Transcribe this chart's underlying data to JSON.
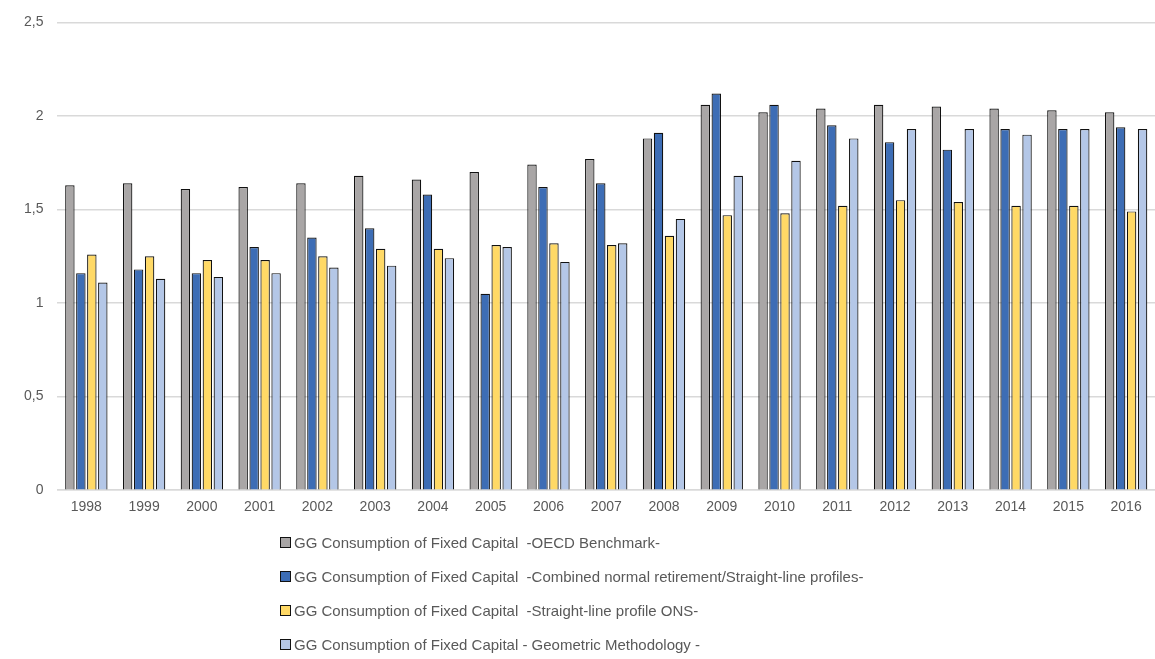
{
  "chart_data": {
    "type": "bar",
    "categories": [
      "1998",
      "1999",
      "2000",
      "2001",
      "2002",
      "2003",
      "2004",
      "2005",
      "2006",
      "2007",
      "2008",
      "2009",
      "2010",
      "2011",
      "2012",
      "2013",
      "2014",
      "2015",
      "2016"
    ],
    "series": [
      {
        "name": "GG Consumption of Fixed Capital  -OECD Benchmark-",
        "color": "#a9a6a6",
        "values": [
          1.63,
          1.64,
          1.61,
          1.62,
          1.64,
          1.68,
          1.66,
          1.7,
          1.74,
          1.77,
          1.88,
          2.06,
          2.02,
          2.04,
          2.06,
          2.05,
          2.04,
          2.03,
          2.02
        ]
      },
      {
        "name": "GG Consumption of Fixed Capital  -Combined normal retirement/Straight-line profiles-",
        "color": "#3d6db5",
        "values": [
          1.16,
          1.18,
          1.16,
          1.3,
          1.35,
          1.4,
          1.58,
          1.05,
          1.62,
          1.64,
          1.91,
          2.12,
          2.06,
          1.95,
          1.86,
          1.82,
          1.93,
          1.93,
          1.94
        ]
      },
      {
        "name": "GG Consumption of Fixed Capital  -Straight-line profile ONS-",
        "color": "#ffd966",
        "values": [
          1.26,
          1.25,
          1.23,
          1.23,
          1.25,
          1.29,
          1.29,
          1.31,
          1.32,
          1.31,
          1.36,
          1.47,
          1.48,
          1.52,
          1.55,
          1.54,
          1.52,
          1.52,
          1.49
        ]
      },
      {
        "name": "GG Consumption of Fixed Capital - Geometric Methodology -",
        "color": "#b4c7e7",
        "values": [
          1.11,
          1.13,
          1.14,
          1.16,
          1.19,
          1.2,
          1.24,
          1.3,
          1.22,
          1.32,
          1.45,
          1.68,
          1.76,
          1.88,
          1.93,
          1.93,
          1.9,
          1.93,
          1.93
        ]
      }
    ],
    "ylim": [
      0,
      2.5
    ],
    "yticks": [
      0,
      {
        "value": 0.5,
        "label": "0,5"
      },
      1,
      {
        "value": 1.5,
        "label": "1,5"
      },
      2,
      {
        "value": 2.5,
        "label": "2,5"
      }
    ],
    "grid": "y",
    "legend": "bottom"
  }
}
